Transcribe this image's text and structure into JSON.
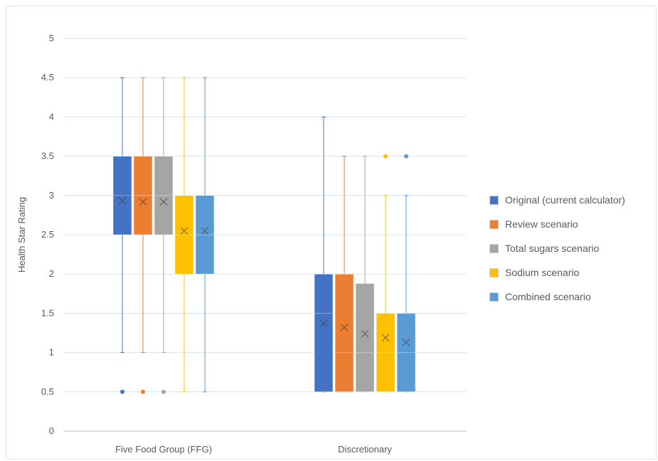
{
  "chart_data": {
    "type": "boxplot",
    "title": "",
    "ylabel": "Health Star Rating",
    "xlabel": "",
    "ylim": [
      0,
      5
    ],
    "yticks": [
      "0",
      "0.5",
      "1",
      "1.5",
      "2",
      "2.5",
      "3",
      "3.5",
      "4",
      "4.5",
      "5"
    ],
    "grid": true,
    "legend_position": "right",
    "categories": [
      "Five Food Group (FFG)",
      "Discretionary"
    ],
    "series": [
      {
        "name": "Original (current calculator)",
        "color": "#4472c4",
        "boxes": [
          {
            "min": 1.0,
            "q1": 2.5,
            "median": 3.0,
            "q3": 3.5,
            "max": 4.5,
            "mean": 2.93,
            "outliers": [
              0.5
            ]
          },
          {
            "min": 0.5,
            "q1": 0.5,
            "median": 1.5,
            "q3": 2.0,
            "max": 4.0,
            "mean": 1.37,
            "outliers": []
          }
        ]
      },
      {
        "name": "Review scenario",
        "color": "#ed7d31",
        "boxes": [
          {
            "min": 1.0,
            "q1": 2.5,
            "median": 3.0,
            "q3": 3.5,
            "max": 4.5,
            "mean": 2.92,
            "outliers": [
              0.5
            ]
          },
          {
            "min": 0.5,
            "q1": 0.5,
            "median": 1.0,
            "q3": 2.0,
            "max": 3.5,
            "mean": 1.32,
            "outliers": []
          }
        ]
      },
      {
        "name": "Total sugars scenario",
        "color": "#a5a5a5",
        "boxes": [
          {
            "min": 1.0,
            "q1": 2.5,
            "median": 3.0,
            "q3": 3.5,
            "max": 4.5,
            "mean": 2.92,
            "outliers": [
              0.5
            ]
          },
          {
            "min": 0.5,
            "q1": 0.5,
            "median": 1.0,
            "q3": 1.88,
            "max": 3.5,
            "mean": 1.24,
            "outliers": []
          }
        ]
      },
      {
        "name": "Sodium scenario",
        "color": "#ffc000",
        "boxes": [
          {
            "min": 0.5,
            "q1": 2.0,
            "median": 2.5,
            "q3": 3.0,
            "max": 4.5,
            "mean": 2.55,
            "outliers": []
          },
          {
            "min": 0.5,
            "q1": 0.5,
            "median": 1.0,
            "q3": 1.5,
            "max": 3.0,
            "mean": 1.19,
            "outliers": [
              3.5
            ]
          }
        ]
      },
      {
        "name": "Combined scenario",
        "color": "#5b9bd5",
        "boxes": [
          {
            "min": 0.5,
            "q1": 2.0,
            "median": 2.5,
            "q3": 3.0,
            "max": 4.5,
            "mean": 2.55,
            "outliers": []
          },
          {
            "min": 0.5,
            "q1": 0.5,
            "median": 1.0,
            "q3": 1.5,
            "max": 3.0,
            "mean": 1.13,
            "outliers": [
              3.5
            ]
          }
        ]
      }
    ]
  }
}
